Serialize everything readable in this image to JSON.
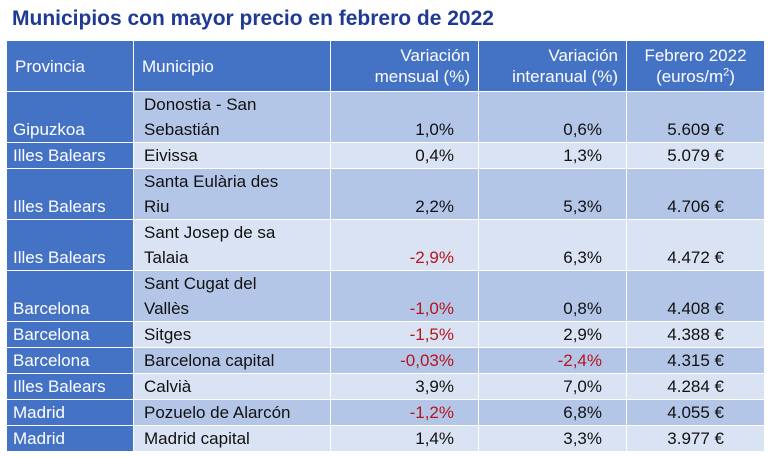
{
  "title": "Municipios con mayor precio en febrero de 2022",
  "headers": {
    "provincia": "Provincia",
    "municipio": "Municipio",
    "var_mensual": "Variación mensual (%)",
    "var_interanual": "Variación interanual (%)",
    "precio_line1": "Febrero 2022",
    "precio_line2": "(euros/m",
    "precio_sup": "2",
    "precio_close": ")"
  },
  "rows": [
    {
      "provincia": "Gipuzkoa",
      "municipio_l1": "Donostia - San",
      "municipio_l2": "Sebastián",
      "mensual": "1,0%",
      "interanual": "0,6%",
      "precio": "5.609 €"
    },
    {
      "provincia": "Illes Balears",
      "municipio_l1": "Eivissa",
      "municipio_l2": "",
      "mensual": "0,4%",
      "interanual": "1,3%",
      "precio": "5.079 €"
    },
    {
      "provincia": "Illes Balears",
      "municipio_l1": "Santa Eulària des",
      "municipio_l2": "Riu",
      "mensual": "2,2%",
      "interanual": "5,3%",
      "precio": "4.706 €"
    },
    {
      "provincia": "Illes Balears",
      "municipio_l1": "Sant Josep de sa",
      "municipio_l2": "Talaia",
      "mensual": "-2,9%",
      "interanual": "6,3%",
      "precio": "4.472 €"
    },
    {
      "provincia": "Barcelona",
      "municipio_l1": "Sant Cugat del",
      "municipio_l2": "Vallès",
      "mensual": "-1,0%",
      "interanual": "0,8%",
      "precio": "4.408 €"
    },
    {
      "provincia": "Barcelona",
      "municipio_l1": "Sitges",
      "municipio_l2": "",
      "mensual": "-1,5%",
      "interanual": "2,9%",
      "precio": "4.388 €"
    },
    {
      "provincia": "Barcelona",
      "municipio_l1": "Barcelona capital",
      "municipio_l2": "",
      "mensual": "-0,03%",
      "interanual": "-2,4%",
      "precio": "4.315 €"
    },
    {
      "provincia": "Illes Balears",
      "municipio_l1": "Calvià",
      "municipio_l2": "",
      "mensual": "3,9%",
      "interanual": "7,0%",
      "precio": "4.284 €"
    },
    {
      "provincia": "Madrid",
      "municipio_l1": "Pozuelo de Alarcón",
      "municipio_l2": "",
      "mensual": "-1,2%",
      "interanual": "6,8%",
      "precio": "4.055 €"
    },
    {
      "provincia": "Madrid",
      "municipio_l1": "Madrid capital",
      "municipio_l2": "",
      "mensual": "1,4%",
      "interanual": "3,3%",
      "precio": "3.977 €"
    }
  ],
  "colors": {
    "title": "#1f3a93",
    "header_bg": "#4472c4",
    "row_odd": "#b4c6e7",
    "row_even": "#dae3f3",
    "negative": "#b3161b"
  }
}
